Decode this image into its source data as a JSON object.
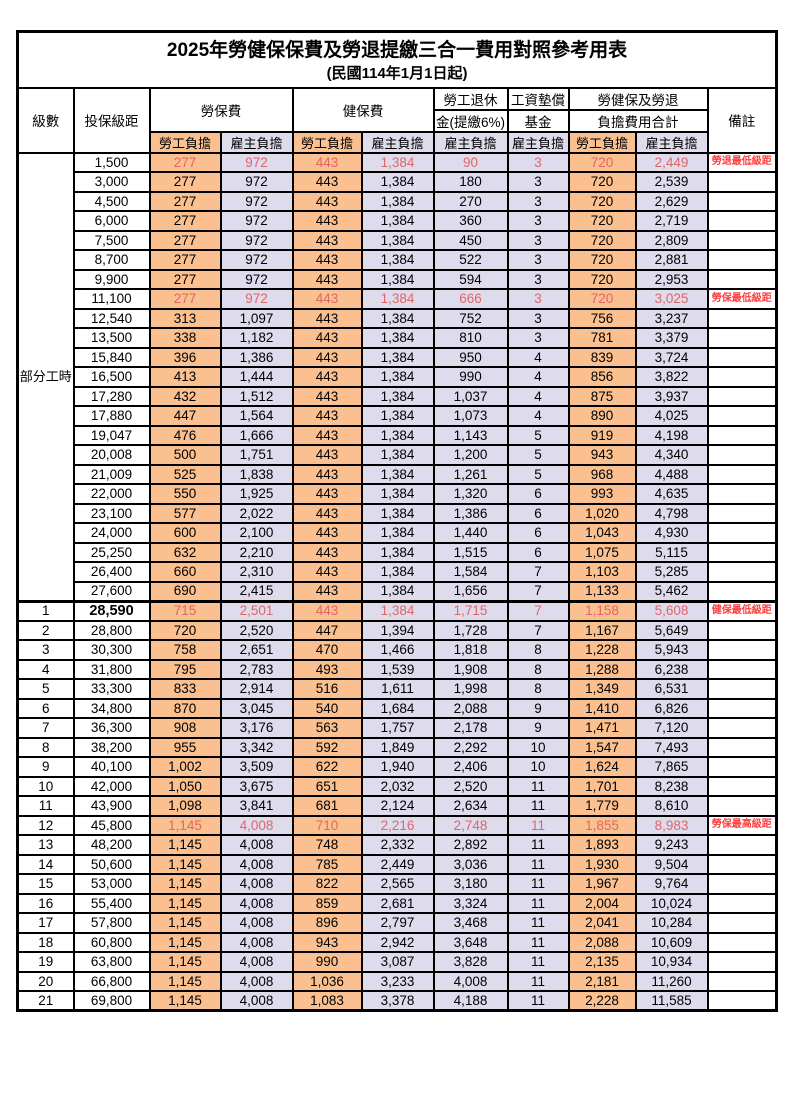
{
  "title": "2025年勞健保保費及勞退提繳三合一費用對照參考用表",
  "subtitle": "(民國114年1月1日起)",
  "header": {
    "level": "級數",
    "bracket": "投保級距",
    "labor_fee": "勞保費",
    "health_fee": "健保費",
    "pension_top": "勞工退休",
    "pension_bottom": "金(提繳6%)",
    "wage_fund_top": "工資墊償",
    "wage_fund_bottom": "基金",
    "total_top": "勞健保及勞退",
    "total_bottom": "負擔費用合計",
    "remark": "備註",
    "employee_share": "勞工負擔",
    "employer_share": "雇主負擔"
  },
  "part_time": {
    "label": "部分工時",
    "row_count": 23
  },
  "colors": {
    "employee_col_bg": "#FAC090",
    "employer_col_bg": "#DEDBEC",
    "highlight_text": "#E06666",
    "remark_text": "#FF4040",
    "border": "#000000"
  },
  "remarks_legend": {
    "pension_min": "勞退最低級距",
    "labor_min": "勞保最低級距",
    "health_min": "健保最低級距",
    "labor_max": "勞保最高級距"
  },
  "rows": [
    {
      "level": null,
      "bracket": "1,500",
      "values": [
        "277",
        "972",
        "443",
        "1,384",
        "90",
        "3",
        "720",
        "2,449"
      ],
      "remark": "勞退最低級距",
      "highlight": true
    },
    {
      "level": null,
      "bracket": "3,000",
      "values": [
        "277",
        "972",
        "443",
        "1,384",
        "180",
        "3",
        "720",
        "2,539"
      ],
      "remark": "",
      "highlight": false
    },
    {
      "level": null,
      "bracket": "4,500",
      "values": [
        "277",
        "972",
        "443",
        "1,384",
        "270",
        "3",
        "720",
        "2,629"
      ],
      "remark": "",
      "highlight": false
    },
    {
      "level": null,
      "bracket": "6,000",
      "values": [
        "277",
        "972",
        "443",
        "1,384",
        "360",
        "3",
        "720",
        "2,719"
      ],
      "remark": "",
      "highlight": false
    },
    {
      "level": null,
      "bracket": "7,500",
      "values": [
        "277",
        "972",
        "443",
        "1,384",
        "450",
        "3",
        "720",
        "2,809"
      ],
      "remark": "",
      "highlight": false
    },
    {
      "level": null,
      "bracket": "8,700",
      "values": [
        "277",
        "972",
        "443",
        "1,384",
        "522",
        "3",
        "720",
        "2,881"
      ],
      "remark": "",
      "highlight": false
    },
    {
      "level": null,
      "bracket": "9,900",
      "values": [
        "277",
        "972",
        "443",
        "1,384",
        "594",
        "3",
        "720",
        "2,953"
      ],
      "remark": "",
      "highlight": false
    },
    {
      "level": null,
      "bracket": "11,100",
      "values": [
        "277",
        "972",
        "443",
        "1,384",
        "666",
        "3",
        "720",
        "3,025"
      ],
      "remark": "勞保最低級距",
      "highlight": true
    },
    {
      "level": null,
      "bracket": "12,540",
      "values": [
        "313",
        "1,097",
        "443",
        "1,384",
        "752",
        "3",
        "756",
        "3,237"
      ],
      "remark": "",
      "highlight": false
    },
    {
      "level": null,
      "bracket": "13,500",
      "values": [
        "338",
        "1,182",
        "443",
        "1,384",
        "810",
        "3",
        "781",
        "3,379"
      ],
      "remark": "",
      "highlight": false
    },
    {
      "level": null,
      "bracket": "15,840",
      "values": [
        "396",
        "1,386",
        "443",
        "1,384",
        "950",
        "4",
        "839",
        "3,724"
      ],
      "remark": "",
      "highlight": false
    },
    {
      "level": null,
      "bracket": "16,500",
      "values": [
        "413",
        "1,444",
        "443",
        "1,384",
        "990",
        "4",
        "856",
        "3,822"
      ],
      "remark": "",
      "highlight": false
    },
    {
      "level": null,
      "bracket": "17,280",
      "values": [
        "432",
        "1,512",
        "443",
        "1,384",
        "1,037",
        "4",
        "875",
        "3,937"
      ],
      "remark": "",
      "highlight": false
    },
    {
      "level": null,
      "bracket": "17,880",
      "values": [
        "447",
        "1,564",
        "443",
        "1,384",
        "1,073",
        "4",
        "890",
        "4,025"
      ],
      "remark": "",
      "highlight": false
    },
    {
      "level": null,
      "bracket": "19,047",
      "values": [
        "476",
        "1,666",
        "443",
        "1,384",
        "1,143",
        "5",
        "919",
        "4,198"
      ],
      "remark": "",
      "highlight": false
    },
    {
      "level": null,
      "bracket": "20,008",
      "values": [
        "500",
        "1,751",
        "443",
        "1,384",
        "1,200",
        "5",
        "943",
        "4,340"
      ],
      "remark": "",
      "highlight": false
    },
    {
      "level": null,
      "bracket": "21,009",
      "values": [
        "525",
        "1,838",
        "443",
        "1,384",
        "1,261",
        "5",
        "968",
        "4,488"
      ],
      "remark": "",
      "highlight": false
    },
    {
      "level": null,
      "bracket": "22,000",
      "values": [
        "550",
        "1,925",
        "443",
        "1,384",
        "1,320",
        "6",
        "993",
        "4,635"
      ],
      "remark": "",
      "highlight": false
    },
    {
      "level": null,
      "bracket": "23,100",
      "values": [
        "577",
        "2,022",
        "443",
        "1,384",
        "1,386",
        "6",
        "1,020",
        "4,798"
      ],
      "remark": "",
      "highlight": false
    },
    {
      "level": null,
      "bracket": "24,000",
      "values": [
        "600",
        "2,100",
        "443",
        "1,384",
        "1,440",
        "6",
        "1,043",
        "4,930"
      ],
      "remark": "",
      "highlight": false
    },
    {
      "level": null,
      "bracket": "25,250",
      "values": [
        "632",
        "2,210",
        "443",
        "1,384",
        "1,515",
        "6",
        "1,075",
        "5,115"
      ],
      "remark": "",
      "highlight": false
    },
    {
      "level": null,
      "bracket": "26,400",
      "values": [
        "660",
        "2,310",
        "443",
        "1,384",
        "1,584",
        "7",
        "1,103",
        "5,285"
      ],
      "remark": "",
      "highlight": false
    },
    {
      "level": null,
      "bracket": "27,600",
      "values": [
        "690",
        "2,415",
        "443",
        "1,384",
        "1,656",
        "7",
        "1,133",
        "5,462"
      ],
      "remark": "",
      "highlight": false
    },
    {
      "level": "1",
      "bracket": "28,590",
      "values": [
        "715",
        "2,501",
        "443",
        "1,384",
        "1,715",
        "7",
        "1,158",
        "5,608"
      ],
      "remark": "健保最低級距",
      "highlight": true
    },
    {
      "level": "2",
      "bracket": "28,800",
      "values": [
        "720",
        "2,520",
        "447",
        "1,394",
        "1,728",
        "7",
        "1,167",
        "5,649"
      ],
      "remark": "",
      "highlight": false
    },
    {
      "level": "3",
      "bracket": "30,300",
      "values": [
        "758",
        "2,651",
        "470",
        "1,466",
        "1,818",
        "8",
        "1,228",
        "5,943"
      ],
      "remark": "",
      "highlight": false
    },
    {
      "level": "4",
      "bracket": "31,800",
      "values": [
        "795",
        "2,783",
        "493",
        "1,539",
        "1,908",
        "8",
        "1,288",
        "6,238"
      ],
      "remark": "",
      "highlight": false
    },
    {
      "level": "5",
      "bracket": "33,300",
      "values": [
        "833",
        "2,914",
        "516",
        "1,611",
        "1,998",
        "8",
        "1,349",
        "6,531"
      ],
      "remark": "",
      "highlight": false
    },
    {
      "level": "6",
      "bracket": "34,800",
      "values": [
        "870",
        "3,045",
        "540",
        "1,684",
        "2,088",
        "9",
        "1,410",
        "6,826"
      ],
      "remark": "",
      "highlight": false
    },
    {
      "level": "7",
      "bracket": "36,300",
      "values": [
        "908",
        "3,176",
        "563",
        "1,757",
        "2,178",
        "9",
        "1,471",
        "7,120"
      ],
      "remark": "",
      "highlight": false
    },
    {
      "level": "8",
      "bracket": "38,200",
      "values": [
        "955",
        "3,342",
        "592",
        "1,849",
        "2,292",
        "10",
        "1,547",
        "7,493"
      ],
      "remark": "",
      "highlight": false
    },
    {
      "level": "9",
      "bracket": "40,100",
      "values": [
        "1,002",
        "3,509",
        "622",
        "1,940",
        "2,406",
        "10",
        "1,624",
        "7,865"
      ],
      "remark": "",
      "highlight": false
    },
    {
      "level": "10",
      "bracket": "42,000",
      "values": [
        "1,050",
        "3,675",
        "651",
        "2,032",
        "2,520",
        "11",
        "1,701",
        "8,238"
      ],
      "remark": "",
      "highlight": false
    },
    {
      "level": "11",
      "bracket": "43,900",
      "values": [
        "1,098",
        "3,841",
        "681",
        "2,124",
        "2,634",
        "11",
        "1,779",
        "8,610"
      ],
      "remark": "",
      "highlight": false
    },
    {
      "level": "12",
      "bracket": "45,800",
      "values": [
        "1,145",
        "4,008",
        "710",
        "2,216",
        "2,748",
        "11",
        "1,855",
        "8,983"
      ],
      "remark": "勞保最高級距",
      "highlight": true
    },
    {
      "level": "13",
      "bracket": "48,200",
      "values": [
        "1,145",
        "4,008",
        "748",
        "2,332",
        "2,892",
        "11",
        "1,893",
        "9,243"
      ],
      "remark": "",
      "highlight": false
    },
    {
      "level": "14",
      "bracket": "50,600",
      "values": [
        "1,145",
        "4,008",
        "785",
        "2,449",
        "3,036",
        "11",
        "1,930",
        "9,504"
      ],
      "remark": "",
      "highlight": false
    },
    {
      "level": "15",
      "bracket": "53,000",
      "values": [
        "1,145",
        "4,008",
        "822",
        "2,565",
        "3,180",
        "11",
        "1,967",
        "9,764"
      ],
      "remark": "",
      "highlight": false
    },
    {
      "level": "16",
      "bracket": "55,400",
      "values": [
        "1,145",
        "4,008",
        "859",
        "2,681",
        "3,324",
        "11",
        "2,004",
        "10,024"
      ],
      "remark": "",
      "highlight": false
    },
    {
      "level": "17",
      "bracket": "57,800",
      "values": [
        "1,145",
        "4,008",
        "896",
        "2,797",
        "3,468",
        "11",
        "2,041",
        "10,284"
      ],
      "remark": "",
      "highlight": false
    },
    {
      "level": "18",
      "bracket": "60,800",
      "values": [
        "1,145",
        "4,008",
        "943",
        "2,942",
        "3,648",
        "11",
        "2,088",
        "10,609"
      ],
      "remark": "",
      "highlight": false
    },
    {
      "level": "19",
      "bracket": "63,800",
      "values": [
        "1,145",
        "4,008",
        "990",
        "3,087",
        "3,828",
        "11",
        "2,135",
        "10,934"
      ],
      "remark": "",
      "highlight": false
    },
    {
      "level": "20",
      "bracket": "66,800",
      "values": [
        "1,145",
        "4,008",
        "1,036",
        "3,233",
        "4,008",
        "11",
        "2,181",
        "11,260"
      ],
      "remark": "",
      "highlight": false
    },
    {
      "level": "21",
      "bracket": "69,800",
      "values": [
        "1,145",
        "4,008",
        "1,083",
        "3,378",
        "4,188",
        "11",
        "2,228",
        "11,585"
      ],
      "remark": "",
      "highlight": false
    }
  ]
}
